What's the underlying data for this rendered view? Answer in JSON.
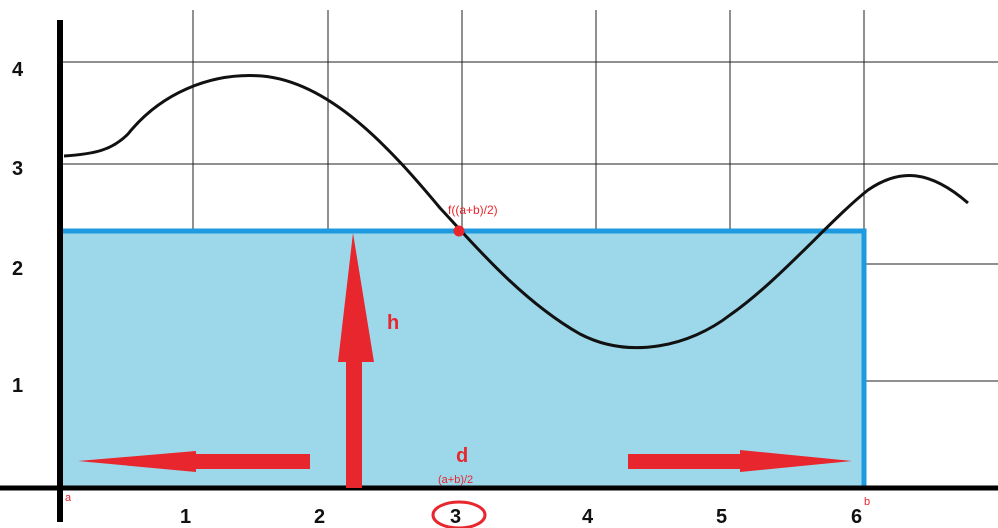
{
  "chart_data": {
    "type": "diagram",
    "x_ticks": [
      "1",
      "2",
      "3",
      "4",
      "5",
      "6"
    ],
    "y_ticks": [
      "1",
      "2",
      "3",
      "4"
    ],
    "point_label": "f((a+b)/2)",
    "height_label": "h",
    "width_label": "d",
    "midpoint_label": "(a+b)/2",
    "a_label": "a",
    "b_label": "b",
    "rectangle_height": 2.3,
    "rectangle_x_range": [
      "a",
      "b"
    ],
    "highlighted_tick": "3"
  },
  "colors": {
    "rect_fill": "#9dd8ea",
    "rect_stroke": "#1e9ae0",
    "arrow": "#e8262d",
    "curve": "#111111",
    "grid": "#111111"
  }
}
